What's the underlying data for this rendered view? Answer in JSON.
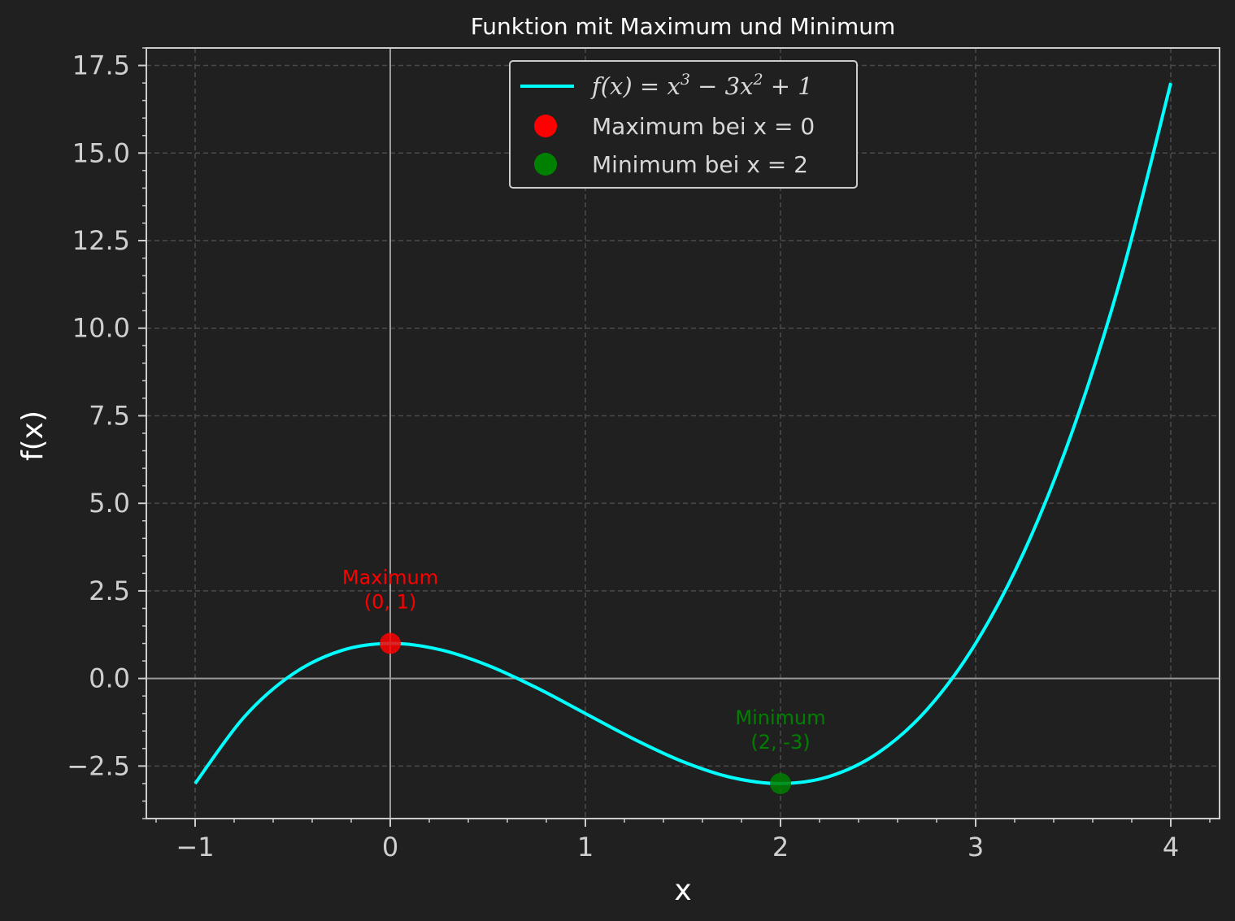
{
  "chart_data": {
    "type": "line",
    "title": "Funktion mit Maximum und Minimum",
    "xlabel": "x",
    "ylabel": "f(x)",
    "xlim": [
      -1.25,
      4.25
    ],
    "ylim": [
      -4.0,
      18.0
    ],
    "x_ticks": [
      -1,
      0,
      1,
      2,
      3,
      4
    ],
    "x_tick_labels": [
      "−1",
      "0",
      "1",
      "2",
      "3",
      "4"
    ],
    "y_ticks": [
      -2.5,
      0.0,
      2.5,
      5.0,
      7.5,
      10.0,
      12.5,
      15.0,
      17.5
    ],
    "y_tick_labels": [
      "−2.5",
      "0.0",
      "2.5",
      "5.0",
      "7.5",
      "10.0",
      "12.5",
      "15.0",
      "17.5"
    ],
    "grid": true,
    "legend_position": "upper-center",
    "series": [
      {
        "name": "f(x) = x³ − 3x² + 1",
        "kind": "line",
        "color": "#00ffff",
        "x": [
          -1.0,
          -0.75,
          -0.5,
          -0.25,
          0.0,
          0.25,
          0.5,
          0.75,
          1.0,
          1.25,
          1.5,
          1.75,
          2.0,
          2.25,
          2.5,
          2.75,
          3.0,
          3.25,
          3.5,
          3.75,
          4.0
        ],
        "y": [
          -3.0,
          -1.109,
          0.125,
          0.797,
          1.0,
          0.828,
          0.375,
          -0.266,
          -1.0,
          -1.734,
          -2.375,
          -2.828,
          -3.0,
          -2.797,
          -2.125,
          -0.891,
          1.0,
          3.641,
          7.125,
          11.547,
          17.0
        ]
      },
      {
        "name": "Maximum bei x = 0",
        "kind": "scatter",
        "color": "#ff0000",
        "x": [
          0
        ],
        "y": [
          1
        ]
      },
      {
        "name": "Minimum bei x = 2",
        "kind": "scatter",
        "color": "#008000",
        "x": [
          2
        ],
        "y": [
          -3
        ]
      }
    ],
    "annotations": [
      {
        "lines": [
          "Maximum",
          "(0, 1)"
        ],
        "x": 0,
        "y": 1,
        "color": "#ff0000"
      },
      {
        "lines": [
          "Minimum",
          "(2, -3)"
        ],
        "x": 2,
        "y": -3,
        "color": "#008000"
      }
    ],
    "reference_lines": {
      "x": 0,
      "y": 0
    }
  }
}
